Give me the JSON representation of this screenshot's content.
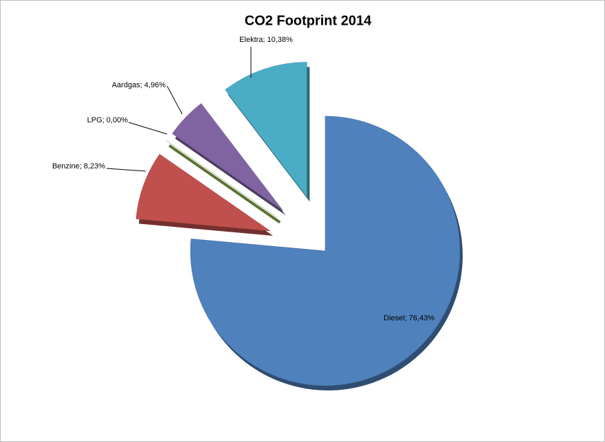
{
  "chart_data": {
    "type": "pie",
    "title": "CO2 Footprint 2014",
    "categories": [
      "Diesel",
      "Benzine",
      "LPG",
      "Aardgas",
      "Elektra"
    ],
    "values": [
      76.43,
      8.23,
      0,
      4.96,
      10.38
    ],
    "value_labels": [
      "Diesel; 76,43%",
      "Benzine; 8,23%",
      "LPG; 0,00%",
      "Aardgas; 4,96%",
      "Elektra; 10,38%"
    ],
    "colors": [
      "#4f81bd",
      "#c0504d",
      "#9bbb59",
      "#8064a2",
      "#4bacc6"
    ]
  }
}
